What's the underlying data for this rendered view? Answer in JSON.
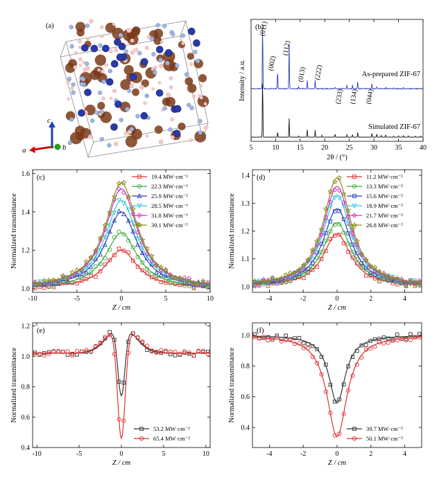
{
  "panel_a": {
    "label": "(a)",
    "axes": [
      {
        "name": "c",
        "color": "#1f3fb0"
      },
      {
        "name": "a",
        "color": "#d01010"
      },
      {
        "name": "b",
        "color": "#20a020"
      }
    ],
    "colors": {
      "co": "#2a3aa8",
      "c": "#7a3a18",
      "n": "#9fb4e0",
      "h": "#f3c9c9",
      "cell": "#888888"
    }
  },
  "chart_data": [
    {
      "id": "b",
      "label": "(b)",
      "type": "line",
      "xlabel_html": "2θ / (°)",
      "xlabel": "2θ / (°)",
      "ylabel": "Intensity / a.u.",
      "xlim": [
        5,
        40
      ],
      "xticks": [
        5,
        10,
        15,
        20,
        25,
        30,
        35,
        40
      ],
      "series": [
        {
          "name": "As-prepared ZIF-67",
          "color": "#2b3db5",
          "peaks": [
            [
              7.35,
              1.0
            ],
            [
              10.4,
              0.28
            ],
            [
              12.75,
              0.66
            ],
            [
              14.7,
              0.03
            ],
            [
              16.45,
              0.12
            ],
            [
              18.05,
              0.12
            ],
            [
              22.1,
              0.02
            ],
            [
              24.5,
              0.06
            ],
            [
              25.65,
              0.05
            ],
            [
              26.7,
              0.11
            ],
            [
              29.6,
              0.08
            ],
            [
              30.6,
              0.03
            ],
            [
              32.4,
              0.03
            ],
            [
              34.0,
              0.02
            ],
            [
              36.0,
              0.02
            ]
          ]
        },
        {
          "name": "Simulated ZIF-67",
          "color": "#111111",
          "peaks": [
            [
              7.35,
              1.0
            ],
            [
              10.4,
              0.09
            ],
            [
              12.75,
              0.3
            ],
            [
              14.7,
              0.02
            ],
            [
              16.45,
              0.12
            ],
            [
              18.05,
              0.11
            ],
            [
              19.4,
              0.03
            ],
            [
              22.1,
              0.05
            ],
            [
              24.5,
              0.04
            ],
            [
              25.65,
              0.04
            ],
            [
              26.7,
              0.08
            ],
            [
              29.6,
              0.07
            ],
            [
              30.6,
              0.05
            ],
            [
              31.5,
              0.03
            ],
            [
              32.4,
              0.04
            ],
            [
              34.0,
              0.02
            ],
            [
              35.0,
              0.02
            ],
            [
              36.0,
              0.03
            ],
            [
              37.0,
              0.02
            ],
            [
              38.4,
              0.02
            ],
            [
              39.5,
              0.02
            ]
          ]
        }
      ],
      "annotations": [
        {
          "text": "(011)",
          "x": 7.35
        },
        {
          "text": "(002)",
          "x": 10.4
        },
        {
          "text": "(112)",
          "x": 12.75
        },
        {
          "text": "(013)",
          "x": 16.45
        },
        {
          "text": "(222)",
          "x": 18.05
        },
        {
          "text": "(233)",
          "x": 24.5
        },
        {
          "text": "(134)",
          "x": 26.7
        },
        {
          "text": "(044)",
          "x": 29.6
        }
      ]
    },
    {
      "id": "c",
      "label": "(c)",
      "type": "scatter",
      "xlabel": "Z / cm",
      "ylabel": "Normalized transmittance",
      "xlim": [
        -10,
        10
      ],
      "ylim": [
        0.98,
        1.62
      ],
      "xticks": [
        -10,
        -5,
        0,
        5,
        10
      ],
      "yticks": [
        1.0,
        1.2,
        1.4,
        1.6
      ],
      "model": "peak",
      "series": [
        {
          "name": "19.4 MW·cm⁻²",
          "color": "#e03030",
          "marker": "square",
          "amp": 0.2,
          "w": 2.2
        },
        {
          "name": "22.3 MW·cm⁻²",
          "color": "#3aa83a",
          "marker": "circle",
          "amp": 0.29,
          "w": 2.2
        },
        {
          "name": "25.9 MW·cm⁻²",
          "color": "#2b3db5",
          "marker": "triangle",
          "amp": 0.4,
          "w": 2.2
        },
        {
          "name": "28.5 MW·cm⁻²",
          "color": "#33c6e0",
          "marker": "triangle-down",
          "amp": 0.46,
          "w": 2.2
        },
        {
          "name": "31.8 MW·cm⁻²",
          "color": "#d030c0",
          "marker": "diamond",
          "amp": 0.52,
          "w": 2.2
        },
        {
          "name": "39.1 MW·cm⁻²",
          "color": "#8a8a1a",
          "marker": "star",
          "amp": 0.55,
          "w": 2.2
        }
      ]
    },
    {
      "id": "d",
      "label": "(d)",
      "type": "scatter",
      "xlabel": "Z / cm",
      "ylabel": "Normalized transmittance",
      "xlim": [
        -5,
        5
      ],
      "ylim": [
        0.98,
        1.42
      ],
      "xticks": [
        -4,
        -2,
        0,
        2,
        4
      ],
      "yticks": [
        1.0,
        1.1,
        1.2,
        1.3,
        1.4
      ],
      "model": "peak",
      "series": [
        {
          "name": "11.2 MW·cm⁻²",
          "color": "#e03030",
          "marker": "square",
          "amp": 0.19,
          "w": 1.0
        },
        {
          "name": "13.3 MW·cm⁻²",
          "color": "#3aa83a",
          "marker": "circle",
          "amp": 0.23,
          "w": 1.0
        },
        {
          "name": "15.6 MW·cm⁻²",
          "color": "#2b3db5",
          "marker": "square",
          "amp": 0.28,
          "w": 1.0
        },
        {
          "name": "18.9 MW·cm⁻²",
          "color": "#33c6e0",
          "marker": "triangle-down",
          "amp": 0.33,
          "w": 1.0
        },
        {
          "name": "21.7 MW·cm⁻²",
          "color": "#d030c0",
          "marker": "diamond",
          "amp": 0.36,
          "w": 1.0
        },
        {
          "name": "26.8 MW·cm⁻²",
          "color": "#8a8a1a",
          "marker": "star",
          "amp": 0.39,
          "w": 1.0
        }
      ]
    },
    {
      "id": "e",
      "label": "(e)",
      "type": "scatter",
      "xlabel": "Z / cm",
      "ylabel": "Normalized transmittance",
      "xlim": [
        -10.5,
        10.5
      ],
      "ylim": [
        0.4,
        1.22
      ],
      "xticks": [
        -10,
        -5,
        0,
        5,
        10
      ],
      "yticks": [
        0.4,
        0.6,
        0.8,
        1.0,
        1.2
      ],
      "model": "sa-rsa",
      "series": [
        {
          "name": "53.2 MW·cm⁻²",
          "color": "#333333",
          "marker": "square",
          "min": 0.74,
          "w0": 0.6,
          "bump": 0.2,
          "wb": 2.3
        },
        {
          "name": "65.4 MW·cm⁻²",
          "color": "#e03030",
          "marker": "circle",
          "min": 0.46,
          "w0": 0.65,
          "bump": 0.19,
          "wb": 2.5
        }
      ]
    },
    {
      "id": "f",
      "label": "(f)",
      "type": "scatter",
      "xlabel": "Z / cm",
      "ylabel": "Normalized transmittance",
      "xlim": [
        -5,
        5
      ],
      "ylim": [
        0.27,
        1.08
      ],
      "xticks": [
        -4,
        -2,
        0,
        2,
        4
      ],
      "yticks": [
        0.4,
        0.6,
        0.8,
        1.0
      ],
      "model": "valley",
      "series": [
        {
          "name": "39.7 MW·cm⁻²",
          "color": "#333333",
          "marker": "square",
          "min": 0.56,
          "w": 0.6
        },
        {
          "name": "50.1 MW·cm⁻²",
          "color": "#e03030",
          "marker": "circle",
          "min": 0.34,
          "w": 0.72
        }
      ]
    }
  ]
}
